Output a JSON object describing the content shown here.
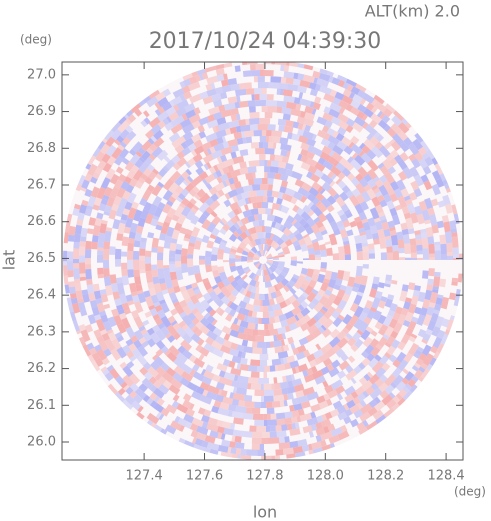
{
  "chart_data": {
    "type": "radar-ppi",
    "title": "2017/10/24 04:39:30",
    "subtitle": "ALT(km) 2.0",
    "x_label": "lon",
    "y_label": "lat",
    "x_unit": "(deg)",
    "y_unit": "(deg)",
    "xlim": [
      127.128,
      128.456
    ],
    "ylim": [
      25.951,
      27.035
    ],
    "xticks": [
      127.4,
      127.6,
      127.8,
      {
        "value": 128.0,
        "label": "128.0"
      },
      128.2,
      128.4
    ],
    "yticks": [
      {
        "value": 26.0,
        "label": "26.0"
      },
      26.1,
      26.2,
      26.3,
      26.4,
      26.5,
      26.6,
      26.7,
      26.8,
      26.9,
      {
        "value": 27.0,
        "label": "27.0"
      }
    ],
    "colors": [
      "#f4a6a6",
      "#a9acf4"
    ]
  }
}
